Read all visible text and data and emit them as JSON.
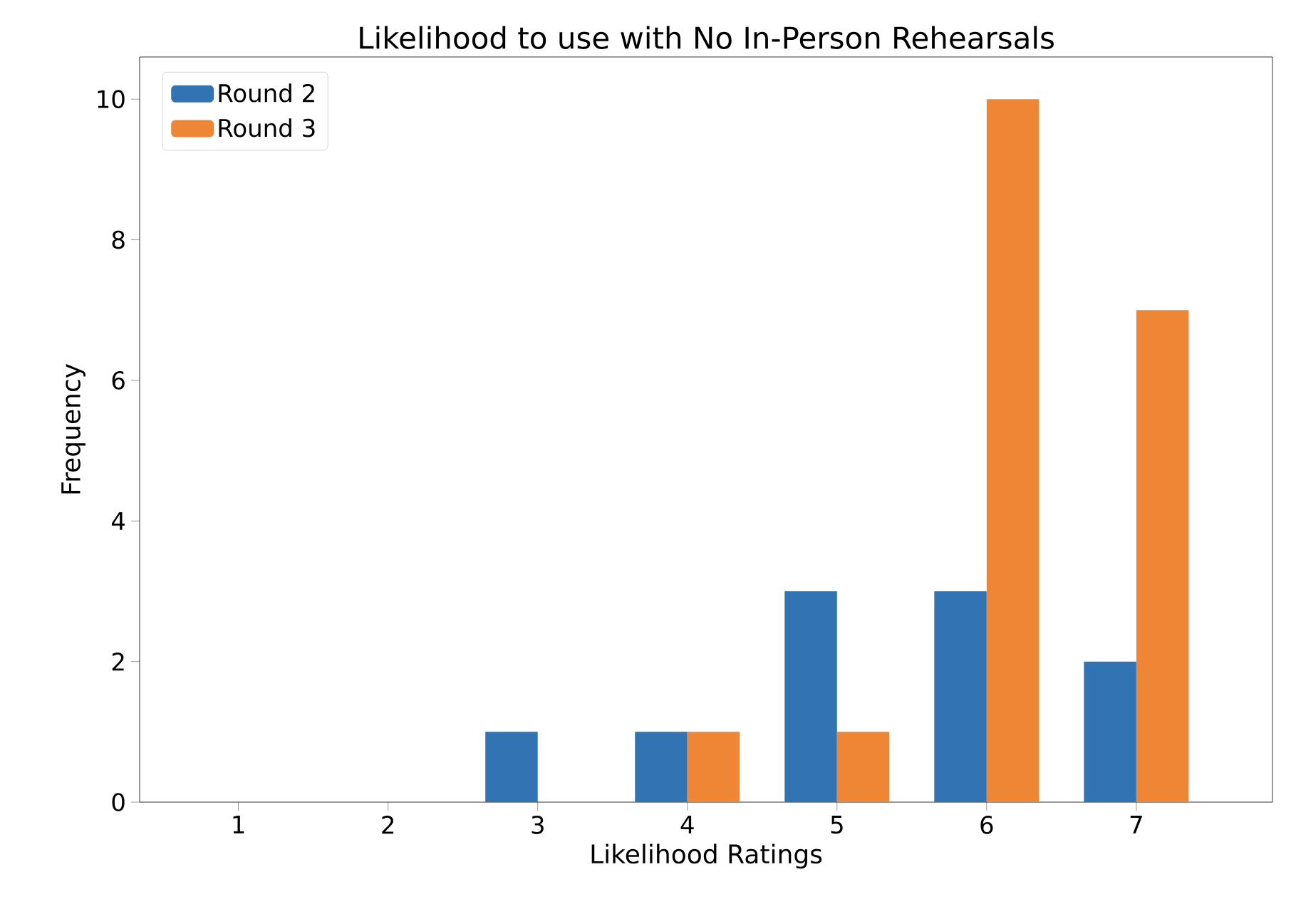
{
  "chart_data": {
    "type": "bar",
    "title": "Likelihood to use with No In-Person Rehearsals",
    "xlabel": "Likelihood Ratings",
    "ylabel": "Frequency",
    "categories": [
      "1",
      "2",
      "3",
      "4",
      "5",
      "6",
      "7"
    ],
    "series": [
      {
        "name": "Round 2",
        "color": "#3274b3",
        "values": [
          0,
          0,
          1,
          1,
          3,
          3,
          2
        ]
      },
      {
        "name": "Round 3",
        "color": "#ef8636",
        "values": [
          0,
          0,
          0,
          1,
          1,
          10,
          7
        ]
      }
    ],
    "ylim": [
      0,
      10.6
    ],
    "yticks": [
      0,
      2,
      4,
      6,
      8,
      10
    ],
    "legend": "top left"
  }
}
